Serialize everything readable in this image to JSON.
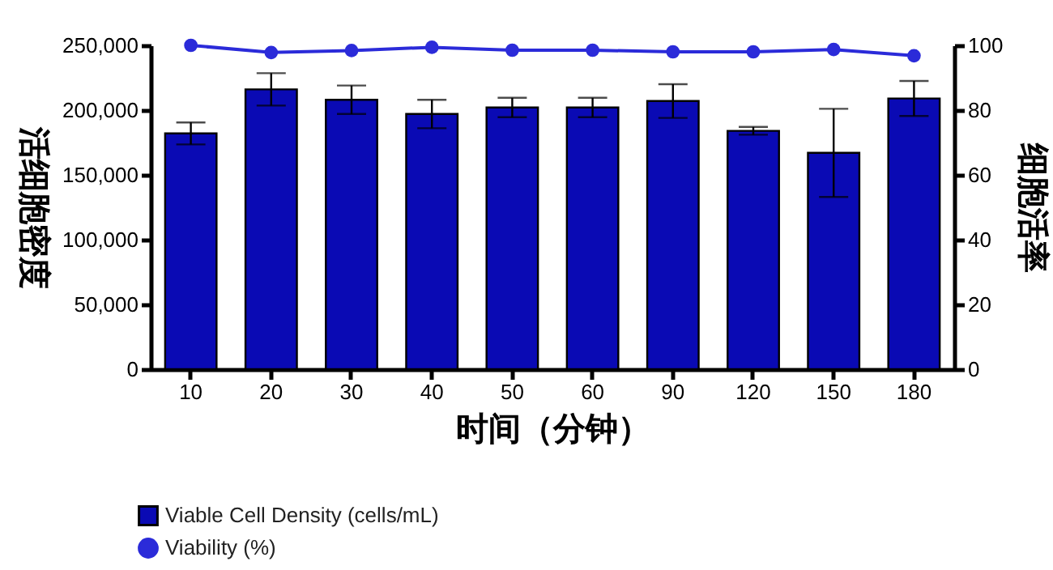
{
  "chart_data": {
    "type": "bar",
    "xlabel": "时间（分钟）",
    "ylabel": "活细胞密度",
    "y2label": "细胞活率",
    "categories": [
      "10",
      "20",
      "30",
      "40",
      "50",
      "60",
      "90",
      "120",
      "150",
      "180"
    ],
    "series": [
      {
        "name": "Viable Cell Density (cells/mL)",
        "color": "#0a0ab4",
        "values": [
          182000,
          216000,
          208000,
          197000,
          202000,
          202000,
          207000,
          184000,
          167000,
          209000
        ],
        "errors": [
          8500,
          12500,
          11000,
          11000,
          7500,
          7500,
          13000,
          3000,
          34000,
          13500
        ]
      },
      {
        "name": "Viability (%)",
        "type": "line",
        "axis": "y2",
        "color": "#2b2bd9",
        "marker": "circle",
        "values": [
          100,
          97.8,
          98.4,
          99.4,
          98.5,
          98.5,
          98,
          98,
          98.7,
          96.8
        ]
      }
    ],
    "ylim": [
      0,
      250000
    ],
    "yticks": [
      0,
      {
        "value": 50000,
        "label": "50,000"
      },
      {
        "value": 100000,
        "label": "100,000"
      },
      {
        "value": 150000,
        "label": "150,000"
      },
      {
        "value": 200000,
        "label": "200,000"
      },
      {
        "value": 250000,
        "label": "250,000"
      }
    ],
    "y2lim": [
      0,
      100
    ],
    "y2ticks": [
      0,
      20,
      40,
      60,
      80,
      100
    ],
    "grid": false,
    "legend": "bottom left"
  }
}
